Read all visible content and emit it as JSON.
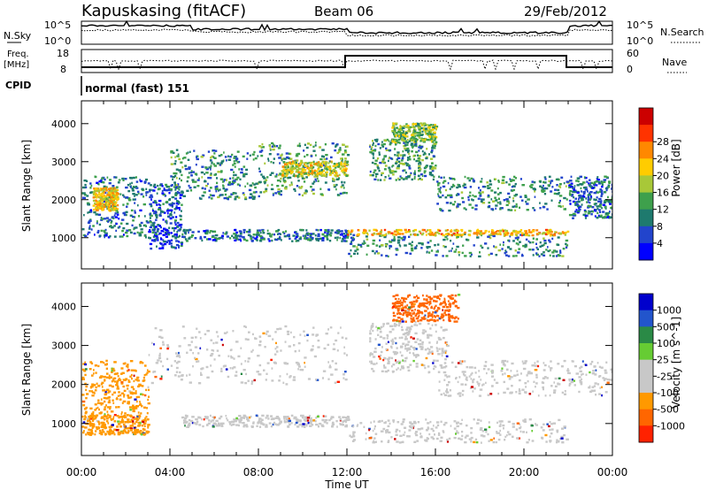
{
  "header": {
    "station": "Kapuskasing (fitACF)",
    "beam": "Beam 06",
    "date": "29/Feb/2012"
  },
  "top_panel": {
    "left_label": "N.Sky",
    "right_label": "N.Search",
    "left_ticks": [
      "10^5",
      "10^0"
    ],
    "right_ticks": [
      "10^5",
      "10^0"
    ]
  },
  "freq_panel": {
    "left_label_1": "Freq.",
    "left_label_2": "[MHz]",
    "right_label": "Nave",
    "left_ticks": [
      "18",
      "8"
    ],
    "right_ticks": [
      "60",
      "0"
    ]
  },
  "cpid": {
    "label": "CPID",
    "value": "normal (fast) 151"
  },
  "colors": {
    "power": [
      "#0000ff",
      "#2244cc",
      "#1e7a6e",
      "#3ea04c",
      "#a8c838",
      "#ffcc00",
      "#ff8800",
      "#ff3300",
      "#cc0000"
    ],
    "velocity": [
      "#0000cc",
      "#2255cc",
      "#2a8a46",
      "#66cc33",
      "#c8c8c8",
      "#c8c8c8",
      "#ff9900",
      "#ff6600",
      "#ff2200",
      "#cc0000"
    ]
  },
  "chart_data": [
    {
      "type": "heatmap",
      "panel": "power",
      "xlabel": "Time UT",
      "ylabel": "Slant Range [km]",
      "xlim": [
        0,
        24
      ],
      "ylim": [
        180,
        4600
      ],
      "x_ticks": [
        "00:00",
        "04:00",
        "08:00",
        "12:00",
        "16:00",
        "20:00",
        "00:00"
      ],
      "y_ticks": [
        1000,
        2000,
        3000,
        4000
      ],
      "colorbar_label": "Power [dB]",
      "colorbar_ticks": [
        4,
        8,
        12,
        16,
        20,
        24,
        28
      ],
      "colorbar_range": [
        0,
        30
      ],
      "regions": [
        {
          "t0": 0.0,
          "t1": 3.0,
          "r0": 1000,
          "r1": 2600,
          "level": 0.25
        },
        {
          "t0": 0.5,
          "t1": 1.6,
          "r0": 1700,
          "r1": 2300,
          "level": 0.6
        },
        {
          "t0": 3.0,
          "t1": 4.5,
          "r0": 700,
          "r1": 2400,
          "level": 0.2
        },
        {
          "t0": 4.0,
          "t1": 8.0,
          "r0": 2000,
          "r1": 3300,
          "level": 0.3
        },
        {
          "t0": 8.0,
          "t1": 12.0,
          "r0": 2100,
          "r1": 3500,
          "level": 0.35
        },
        {
          "t0": 9.0,
          "t1": 12.0,
          "r0": 2600,
          "r1": 3000,
          "level": 0.55
        },
        {
          "t0": 4.5,
          "t1": 12.0,
          "r0": 900,
          "r1": 1200,
          "level": 0.25
        },
        {
          "t0": 12.0,
          "t1": 22.0,
          "r0": 500,
          "r1": 1100,
          "level": 0.3
        },
        {
          "t0": 12.0,
          "t1": 22.0,
          "r0": 1050,
          "r1": 1200,
          "level": 0.65
        },
        {
          "t0": 13.0,
          "t1": 16.0,
          "r0": 2500,
          "r1": 3600,
          "level": 0.35
        },
        {
          "t0": 14.0,
          "t1": 16.0,
          "r0": 3500,
          "r1": 4000,
          "level": 0.45
        },
        {
          "t0": 16.0,
          "t1": 22.0,
          "r0": 1700,
          "r1": 2600,
          "level": 0.3
        },
        {
          "t0": 22.0,
          "t1": 24.0,
          "r0": 1500,
          "r1": 2600,
          "level": 0.25
        }
      ]
    },
    {
      "type": "heatmap",
      "panel": "velocity",
      "xlabel": "Time UT",
      "ylabel": "Slant Range [km]",
      "xlim": [
        0,
        24
      ],
      "ylim": [
        180,
        4600
      ],
      "x_ticks": [
        "00:00",
        "04:00",
        "08:00",
        "12:00",
        "16:00",
        "20:00",
        "00:00"
      ],
      "y_ticks": [
        1000,
        2000,
        3000,
        4000
      ],
      "colorbar_label": "Velocity [m s^-1]",
      "colorbar_ticks": [
        "1000",
        "500",
        "100",
        "25",
        "-25",
        "-100",
        "-500",
        "-1000"
      ],
      "regions": [
        {
          "t0": 0.0,
          "t1": 3.0,
          "r0": 1200,
          "r1": 2600,
          "level": "-200"
        },
        {
          "t0": 0.0,
          "t1": 3.0,
          "r0": 700,
          "r1": 1200,
          "level": "-100"
        },
        {
          "t0": 3.0,
          "t1": 12.0,
          "r0": 2000,
          "r1": 3500,
          "level": "0"
        },
        {
          "t0": 4.5,
          "t1": 12.0,
          "r0": 900,
          "r1": 1200,
          "level": "0"
        },
        {
          "t0": 12.0,
          "t1": 22.0,
          "r0": 500,
          "r1": 1100,
          "level": "0"
        },
        {
          "t0": 13.0,
          "t1": 16.5,
          "r0": 2300,
          "r1": 3600,
          "level": "0"
        },
        {
          "t0": 14.0,
          "t1": 17.0,
          "r0": 3600,
          "r1": 4300,
          "level": "-400"
        },
        {
          "t0": 16.0,
          "t1": 24.0,
          "r0": 1700,
          "r1": 2600,
          "level": "0"
        }
      ]
    }
  ]
}
